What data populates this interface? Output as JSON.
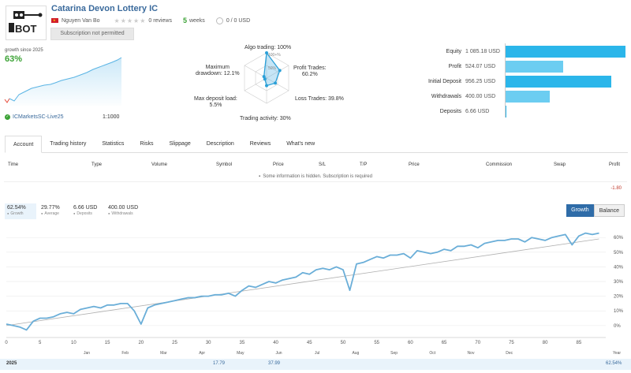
{
  "header": {
    "title": "Catarina Devon Lottery IC",
    "author": "Nguyen Van Bo",
    "reviews": "0 reviews",
    "weeks_num": "5",
    "weeks_label": "weeks",
    "price": "0 / 0 USD",
    "subscribe_label": "Subscription not permitted",
    "logo_text": "BOT"
  },
  "summary": {
    "growth_since": "growth since 2025",
    "growth_value": "63%",
    "server": "ICMarketsSC-Live25",
    "leverage": "1:1000"
  },
  "radar": {
    "algo": "Algo trading: 100%",
    "profit_label": "Profit Trades:",
    "profit_value": "60.2%",
    "loss": "Loss Trades: 39.8%",
    "activity": "Trading activity: 30%",
    "maxdep_label": "Max deposit load:",
    "maxdep_value": "5.5%",
    "dd_label": "Maximum",
    "dd_value": "drawdown: 12.1%",
    "scale_100": "100+%",
    "scale_50": "50%",
    "values": {
      "algo": 100,
      "profit": 60.2,
      "loss": 39.8,
      "activity": 30,
      "maxdep": 5.5,
      "drawdown": 12.1
    }
  },
  "stats": [
    {
      "name": "Equity",
      "value": "1 085.18 USD",
      "amount": 1085.18,
      "color": "#2bb6ea"
    },
    {
      "name": "Profit",
      "value": "524.07 USD",
      "amount": 524.07,
      "color": "#6ccdf1"
    },
    {
      "name": "Initial Deposit",
      "value": "956.25 USD",
      "amount": 956.25,
      "color": "#2bb6ea"
    },
    {
      "name": "Withdrawals",
      "value": "400.00 USD",
      "amount": 400.0,
      "color": "#6ccdf1"
    },
    {
      "name": "Deposits",
      "value": "6.66 USD",
      "amount": 6.66,
      "color": "#2bb6ea"
    }
  ],
  "tabs": [
    "Account",
    "Trading history",
    "Statistics",
    "Risks",
    "Slippage",
    "Description",
    "Reviews",
    "What's new"
  ],
  "table": {
    "headers": [
      "Time",
      "Type",
      "Volume",
      "Symbol",
      "Price",
      "S/L",
      "T/P",
      "Price",
      "Commission",
      "Swap",
      "Profit"
    ],
    "hidden_note": "Some information is hidden. Subscription is required",
    "profit_total": "-1.80"
  },
  "chart_summary": [
    {
      "value": "62.54%",
      "label": "Growth"
    },
    {
      "value": "29.77%",
      "label": "Average"
    },
    {
      "value": "6.66 USD",
      "label": "Deposits"
    },
    {
      "value": "400.00 USD",
      "label": "Withdrawals"
    }
  ],
  "toggle": {
    "growth": "Growth",
    "balance": "Balance"
  },
  "year_row": {
    "year": "2025",
    "mar": "17.79",
    "may": "37.99",
    "total": "62.54%",
    "year_label": "Year"
  },
  "chart_data": {
    "type": "line",
    "x_ticks": [
      0,
      5,
      10,
      15,
      20,
      25,
      30,
      35,
      40,
      45,
      50,
      55,
      60,
      65,
      70,
      75,
      80,
      85
    ],
    "month_labels": [
      "Jan",
      "Feb",
      "Mar",
      "Apr",
      "May",
      "Jun",
      "Jul",
      "Aug",
      "Sep",
      "Oct",
      "Nov",
      "Dec"
    ],
    "y_ticks": [
      "0%",
      "10%",
      "20%",
      "30%",
      "40%",
      "50%",
      "60%"
    ],
    "ylim": [
      -6,
      66
    ],
    "xlim": [
      0,
      89
    ],
    "series": [
      {
        "x": [
          0,
          1,
          2,
          3,
          4,
          5,
          6,
          7,
          8,
          9,
          10,
          11,
          12,
          13,
          14,
          15,
          16,
          17,
          18,
          19,
          20,
          21,
          22,
          23,
          24,
          25,
          26,
          27,
          28,
          29,
          30,
          31,
          32,
          33,
          34,
          35,
          36,
          37,
          38,
          39,
          40,
          41,
          42,
          43,
          44,
          45,
          46,
          47,
          48,
          49,
          50,
          51,
          52,
          53,
          54,
          55,
          56,
          57,
          58,
          59,
          60,
          61,
          62,
          63,
          64,
          65,
          66,
          67,
          68,
          69,
          70,
          71,
          72,
          73,
          74,
          75,
          76,
          77,
          78,
          79,
          80,
          81,
          82,
          83,
          84,
          85,
          86,
          87,
          88
        ],
        "y": [
          1,
          0,
          -1,
          -3,
          3,
          5,
          5,
          6,
          8,
          9,
          8,
          11,
          12,
          13,
          12,
          14,
          14,
          15,
          15,
          10,
          1,
          12,
          14,
          15,
          16,
          17,
          18,
          19,
          19,
          20,
          20,
          21,
          21,
          22,
          20,
          24,
          27,
          26,
          28,
          30,
          29,
          31,
          32,
          33,
          36,
          35,
          38,
          39,
          38,
          40,
          38,
          24,
          42,
          43,
          45,
          47,
          46,
          48,
          48,
          49,
          46,
          51,
          50,
          49,
          50,
          52,
          51,
          54,
          54,
          55,
          53,
          56,
          57,
          58,
          58,
          59,
          59,
          57,
          60,
          59,
          58,
          60,
          61,
          62,
          55,
          61,
          63,
          62,
          63
        ]
      }
    ]
  }
}
